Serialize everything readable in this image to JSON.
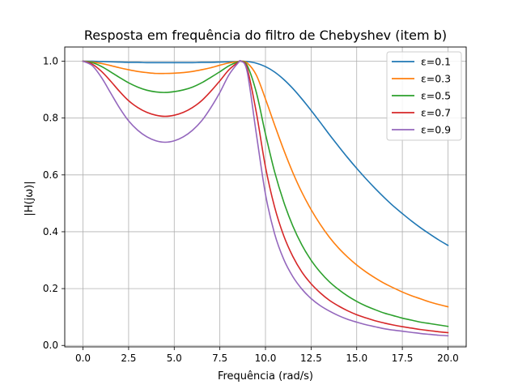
{
  "chart_data": {
    "type": "line",
    "title": "Resposta em frequência do filtro de Chebyshev (item b)",
    "xlabel": "Frequência (rad/s)",
    "ylabel": "|H(jω)|",
    "xlim": [
      -1.0,
      21.0
    ],
    "ylim": [
      -0.005,
      1.05
    ],
    "xticks": [
      0.0,
      2.5,
      5.0,
      7.5,
      10.0,
      12.5,
      15.0,
      17.5,
      20.0
    ],
    "xtick_labels": [
      "0.0",
      "2.5",
      "5.0",
      "7.5",
      "10.0",
      "12.5",
      "15.0",
      "17.5",
      "20.0"
    ],
    "yticks": [
      0.0,
      0.2,
      0.4,
      0.6,
      0.8,
      1.0
    ],
    "ytick_labels": [
      "0.0",
      "0.2",
      "0.4",
      "0.6",
      "0.8",
      "1.0"
    ],
    "grid": true,
    "legend_position": "top-right",
    "x": [
      0,
      0.5,
      1,
      1.5,
      2,
      2.5,
      3,
      3.5,
      4,
      4.5,
      5,
      5.5,
      6,
      6.5,
      7,
      7.5,
      8,
      8.5,
      8.66,
      9,
      9.5,
      10,
      10.5,
      11,
      11.5,
      12,
      12.5,
      13,
      13.5,
      14,
      14.5,
      15,
      15.5,
      16,
      16.5,
      17,
      17.5,
      18,
      18.5,
      19,
      19.5,
      20
    ],
    "series": [
      {
        "name": "ε=0.1",
        "color": "#1f77b4",
        "values": [
          1.0,
          1.0,
          0.999,
          0.998,
          0.997,
          0.996,
          0.996,
          0.995,
          0.995,
          0.995,
          0.995,
          0.995,
          0.995,
          0.996,
          0.996,
          0.997,
          0.998,
          0.999,
          1.0,
          0.999,
          0.993,
          0.981,
          0.962,
          0.936,
          0.904,
          0.867,
          0.827,
          0.785,
          0.742,
          0.701,
          0.661,
          0.623,
          0.587,
          0.553,
          0.521,
          0.491,
          0.464,
          0.438,
          0.414,
          0.392,
          0.371,
          0.352
        ]
      },
      {
        "name": "ε=0.3",
        "color": "#ff7f0e",
        "values": [
          1.0,
          0.997,
          0.992,
          0.985,
          0.977,
          0.97,
          0.964,
          0.96,
          0.957,
          0.957,
          0.958,
          0.96,
          0.964,
          0.97,
          0.977,
          0.986,
          0.994,
          0.999,
          1.0,
          0.994,
          0.951,
          0.867,
          0.776,
          0.688,
          0.608,
          0.538,
          0.478,
          0.426,
          0.381,
          0.343,
          0.311,
          0.283,
          0.259,
          0.238,
          0.219,
          0.203,
          0.188,
          0.175,
          0.164,
          0.153,
          0.144,
          0.136
        ]
      },
      {
        "name": "ε=0.5",
        "color": "#2ca02c",
        "values": [
          1.0,
          0.995,
          0.982,
          0.963,
          0.943,
          0.924,
          0.909,
          0.898,
          0.892,
          0.89,
          0.893,
          0.899,
          0.909,
          0.924,
          0.943,
          0.963,
          0.984,
          0.998,
          1.0,
          0.985,
          0.89,
          0.744,
          0.611,
          0.505,
          0.42,
          0.353,
          0.3,
          0.258,
          0.224,
          0.197,
          0.174,
          0.155,
          0.139,
          0.126,
          0.114,
          0.105,
          0.096,
          0.089,
          0.082,
          0.077,
          0.072,
          0.067
        ]
      },
      {
        "name": "ε=0.7",
        "color": "#d62728",
        "values": [
          1.0,
          0.99,
          0.965,
          0.931,
          0.894,
          0.861,
          0.837,
          0.82,
          0.81,
          0.806,
          0.81,
          0.82,
          0.837,
          0.861,
          0.894,
          0.931,
          0.97,
          0.996,
          1.0,
          0.974,
          0.819,
          0.628,
          0.487,
          0.386,
          0.313,
          0.258,
          0.217,
          0.185,
          0.159,
          0.139,
          0.122,
          0.108,
          0.097,
          0.087,
          0.079,
          0.072,
          0.066,
          0.061,
          0.056,
          0.052,
          0.048,
          0.045
        ]
      },
      {
        "name": "ε=0.9",
        "color": "#9467bd",
        "values": [
          1.0,
          0.985,
          0.944,
          0.89,
          0.836,
          0.79,
          0.757,
          0.734,
          0.72,
          0.715,
          0.72,
          0.734,
          0.757,
          0.79,
          0.836,
          0.89,
          0.952,
          0.994,
          1.0,
          0.962,
          0.744,
          0.532,
          0.393,
          0.303,
          0.242,
          0.198,
          0.165,
          0.14,
          0.121,
          0.105,
          0.092,
          0.082,
          0.073,
          0.066,
          0.059,
          0.054,
          0.05,
          0.046,
          0.042,
          0.039,
          0.036,
          0.034
        ]
      }
    ]
  }
}
